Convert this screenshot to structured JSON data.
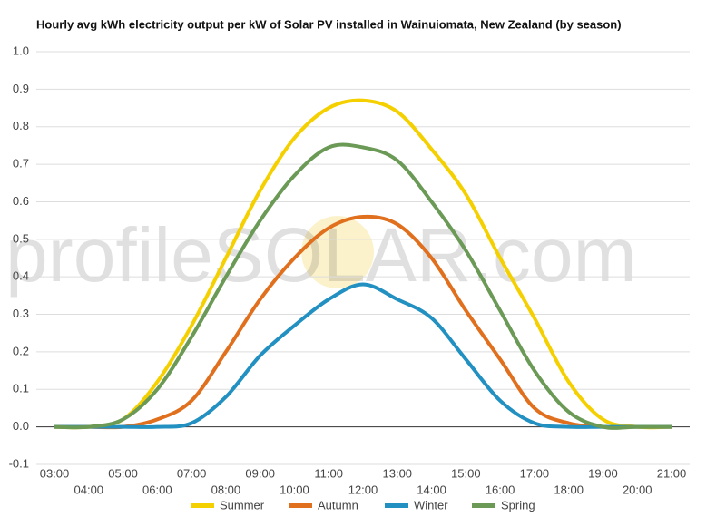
{
  "chart_data": {
    "type": "line",
    "title": "Hourly avg kWh electricity output per kW of Solar PV installed in Wainuiomata, New Zealand (by season)",
    "watermark": "profileSOLAR.com",
    "categories": [
      "03:00",
      "04:00",
      "05:00",
      "06:00",
      "07:00",
      "08:00",
      "09:00",
      "10:00",
      "11:00",
      "12:00",
      "13:00",
      "14:00",
      "15:00",
      "16:00",
      "17:00",
      "18:00",
      "19:00",
      "20:00",
      "21:00"
    ],
    "series": [
      {
        "name": "Summer",
        "color": "#f5d000",
        "values": [
          0,
          0,
          0.02,
          0.12,
          0.27,
          0.45,
          0.63,
          0.77,
          0.85,
          0.87,
          0.84,
          0.74,
          0.62,
          0.45,
          0.29,
          0.12,
          0.02,
          0,
          0
        ]
      },
      {
        "name": "Autumn",
        "color": "#e0701e",
        "values": [
          0,
          0,
          0,
          0.02,
          0.07,
          0.2,
          0.34,
          0.45,
          0.53,
          0.56,
          0.54,
          0.45,
          0.31,
          0.18,
          0.05,
          0.01,
          0,
          0,
          0
        ]
      },
      {
        "name": "Winter",
        "color": "#2290c0",
        "values": [
          0,
          0,
          0,
          0,
          0.01,
          0.08,
          0.19,
          0.27,
          0.34,
          0.38,
          0.34,
          0.29,
          0.18,
          0.07,
          0.01,
          0,
          0,
          0,
          0
        ]
      },
      {
        "name": "Spring",
        "color": "#6a9a55",
        "values": [
          0,
          0,
          0.02,
          0.1,
          0.24,
          0.4,
          0.55,
          0.67,
          0.745,
          0.745,
          0.71,
          0.6,
          0.47,
          0.31,
          0.15,
          0.04,
          0,
          0,
          0
        ]
      }
    ],
    "ylim": [
      -0.1,
      1
    ],
    "yticks": [
      {
        "value": 1,
        "label": "1.0"
      },
      0.9,
      0.8,
      0.7,
      0.6,
      0.5,
      0.4,
      0.3,
      0.2,
      0.1,
      {
        "value": 0,
        "label": "0.0"
      },
      -0.1
    ],
    "grid": true,
    "legend": "bottom"
  }
}
